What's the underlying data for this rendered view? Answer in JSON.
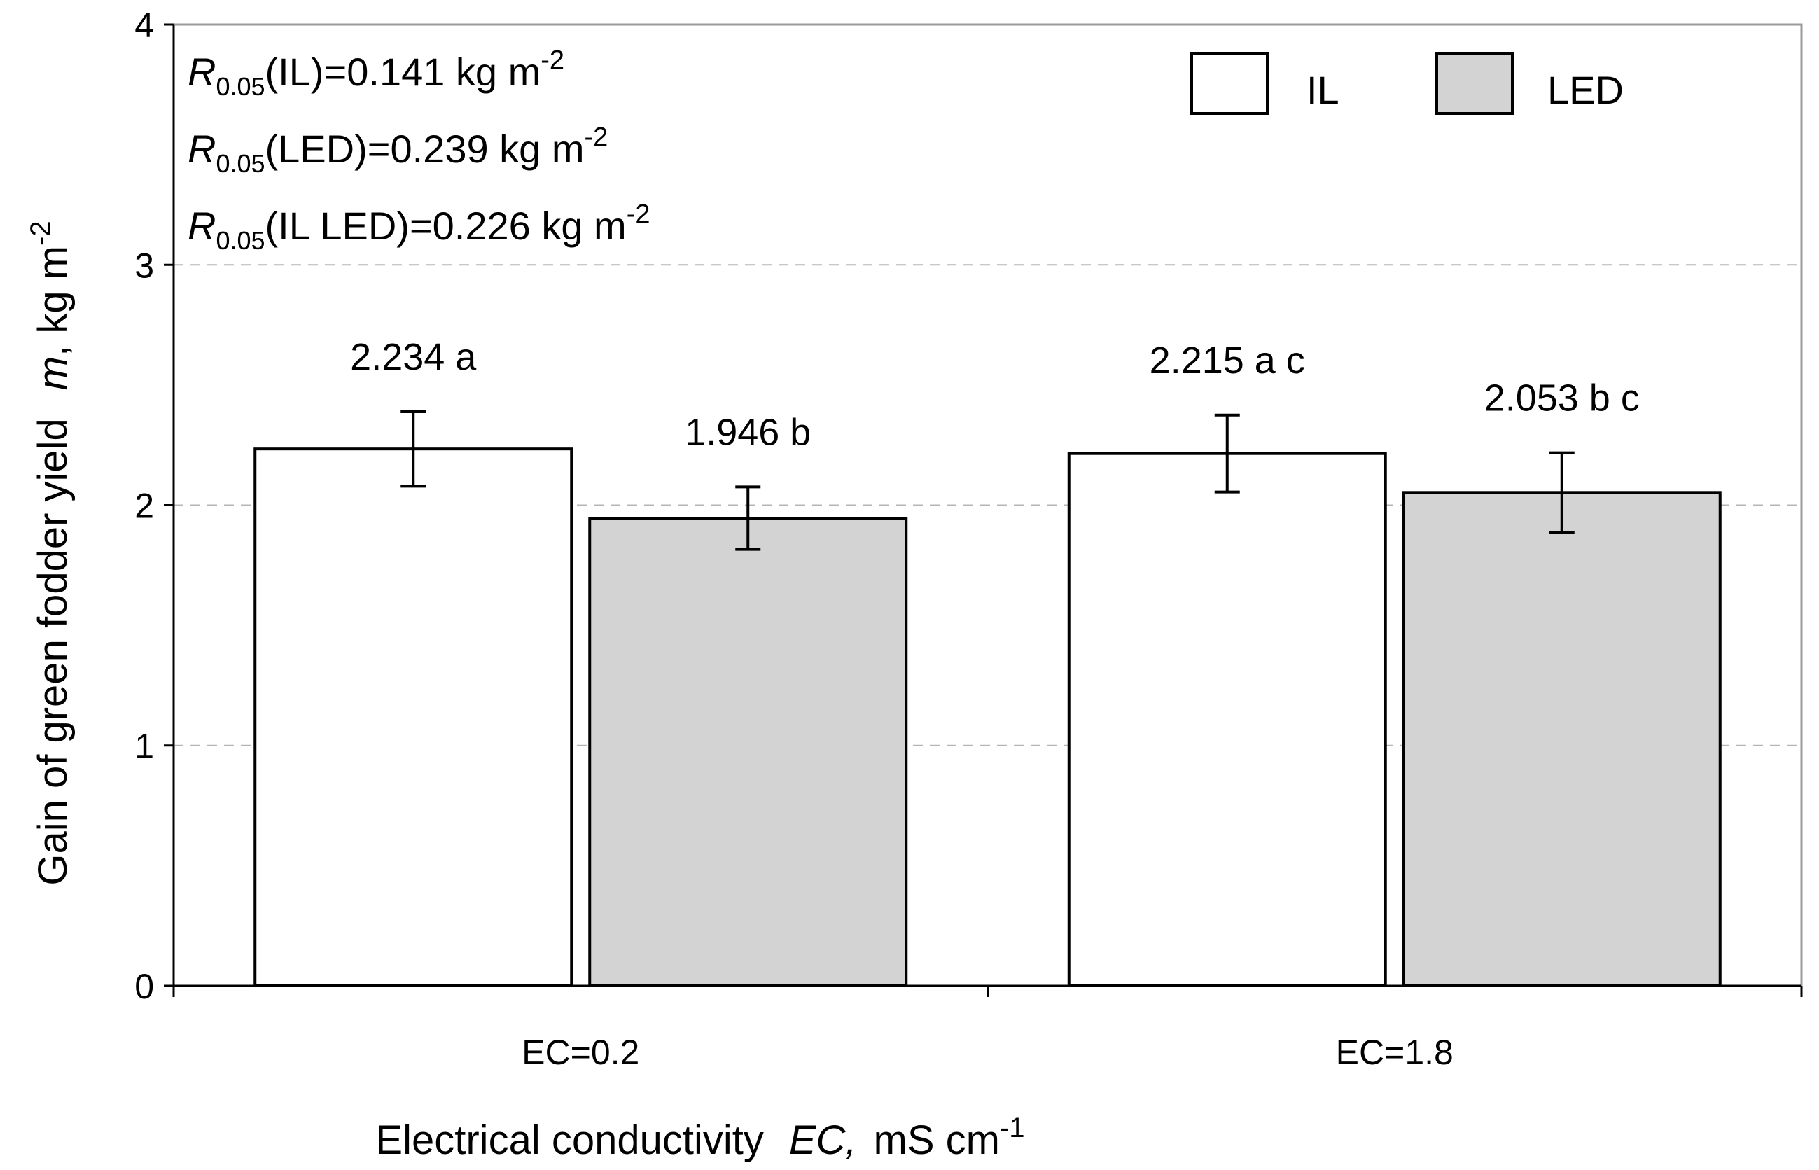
{
  "chart_data": {
    "type": "bar",
    "categories": [
      "EC=0.2",
      "EC=1.8"
    ],
    "series": [
      {
        "name": "IL",
        "values": [
          2.234,
          2.215
        ],
        "errors": [
          0.155,
          0.16
        ],
        "labels": [
          "2.234 a",
          "2.215 a c"
        ],
        "color": "#ffffff"
      },
      {
        "name": "LED",
        "values": [
          1.946,
          2.053
        ],
        "errors": [
          0.13,
          0.165
        ],
        "labels": [
          "1.946 b",
          "2.053 b c"
        ],
        "color": "#d3d3d3"
      }
    ],
    "ylim": [
      0,
      4
    ],
    "yticks": [
      "0",
      "1",
      "2",
      "3",
      "4"
    ],
    "ytick_values": [
      0,
      1,
      2,
      3,
      4
    ],
    "grid": true,
    "grid_style": "dashed",
    "legend_position": "top-right",
    "xlabel": {
      "main": "Electrical conductivity",
      "symbol": "EC,",
      "unit": "mS cm",
      "unit_sup": "-1"
    },
    "ylabel": {
      "main": "Gain of green fodder yield",
      "symbol": "m",
      "unit": ", kg m",
      "unit_sup": "-2"
    },
    "annotations": [
      {
        "r": "R",
        "sub": "0.05",
        "text": "(IL)=0.141 kg m",
        "sup": "-2"
      },
      {
        "r": "R",
        "sub": "0.05",
        "text": "(LED)=0.239 kg m",
        "sup": "-2"
      },
      {
        "r": "R",
        "sub": "0.05",
        "text": "(IL LED)=0.226 kg m",
        "sup": "-2"
      }
    ]
  }
}
